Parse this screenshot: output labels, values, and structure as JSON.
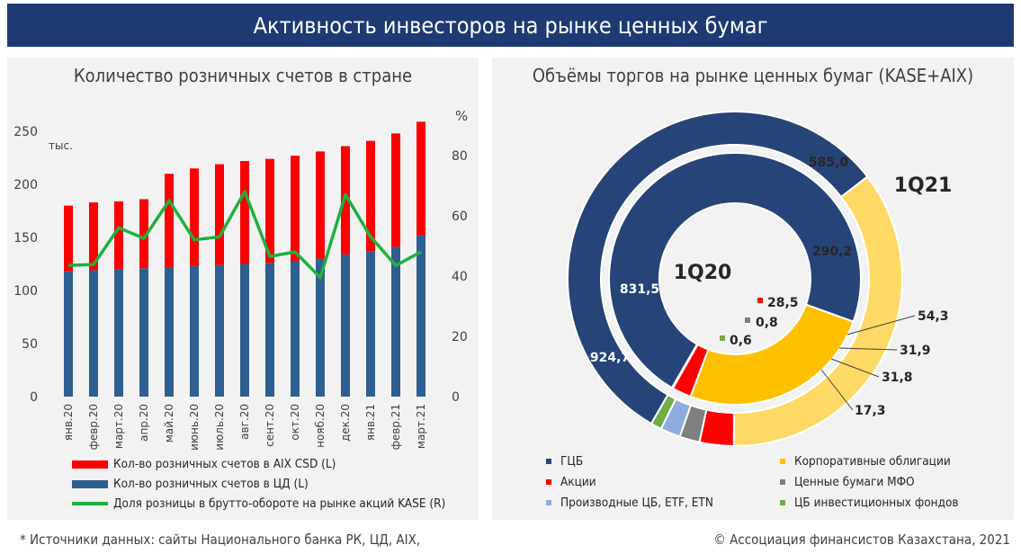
{
  "header": {
    "title": "Активность инвесторов на рынке ценных бумаг"
  },
  "footer": {
    "sources": "* Источники данных: сайты Национального банка РК, ЦД, AIX,",
    "copyright": "© Ассоциация финансистов Казахстана, 2021"
  },
  "colors": {
    "banner": "#1f3a73",
    "aix": "#ff0000",
    "cd": "#2e5f91",
    "share": "#1fb040",
    "gcb": "#264478",
    "corp": "#ffc000",
    "stocks": "#ff0000",
    "mfo": "#7f7f7f",
    "deriv": "#8faadc",
    "funds": "#70ad47"
  },
  "chart_data": [
    {
      "type": "bar",
      "title": "Количество розничных счетов в стране",
      "y_left_unit": "тыс.",
      "y_right_unit": "%",
      "ylim_left": [
        0,
        250
      ],
      "ylim_right": [
        0,
        88
      ],
      "y_left_ticks": [
        0,
        50,
        100,
        150,
        200,
        250
      ],
      "y_right_ticks": [
        0,
        20,
        40,
        60,
        80
      ],
      "categories": [
        "янв.20",
        "февр.20",
        "март.20",
        "апр.20",
        "май.20",
        "июнь.20",
        "июль.20",
        "авг.20",
        "сент.20",
        "окт.20",
        "нояб.20",
        "дек.20",
        "янв.21",
        "февр.21",
        "март.21"
      ],
      "series": [
        {
          "name": "Кол-во розничных счетов в ЦД (L)",
          "kind": "bar",
          "axis": "left",
          "values": [
            118,
            119,
            120,
            121,
            122,
            123,
            124,
            125,
            126,
            128,
            130,
            134,
            137,
            141,
            152
          ]
        },
        {
          "name": "Кол-во розничных счетов в AIX CSD (L)",
          "kind": "bar-stack",
          "axis": "left",
          "values": [
            62,
            64,
            64,
            65,
            88,
            92,
            95,
            97,
            98,
            99,
            101,
            102,
            104,
            107,
            107
          ]
        },
        {
          "name": "Доля розницы в брутто-обороте на рынке акций KASE (R)",
          "kind": "line",
          "axis": "right",
          "values": [
            43.5,
            43.8,
            56,
            52.5,
            65,
            52,
            53,
            68,
            46.5,
            48,
            39.5,
            67,
            53,
            43.5,
            48
          ]
        }
      ]
    },
    {
      "type": "pie",
      "subtype": "double-donut",
      "title": "Объёмы торгов на рынке ценных бумаг (KASE+AIX)",
      "rings": [
        {
          "name": "1Q20",
          "slices": [
            {
              "label": "ЦБ",
              "value": 831.5
            },
            {
              "label": "Корпоративные облигации",
              "value": 290.2
            },
            {
              "label": "Акции",
              "value": 28.5
            },
            {
              "label": "Ценные бумаги МФО",
              "value": 0.8
            },
            {
              "label": "ЦБ инвестиционных фондов",
              "value": 0.6
            }
          ]
        },
        {
          "name": "1Q21",
          "slices": [
            {
              "label": "ЦБ",
              "value": 924.7
            },
            {
              "label": "Корпоративные облигации",
              "value": 585.0
            },
            {
              "label": "Акции",
              "value": 54.3
            },
            {
              "label": "Ценные бумаги МФО",
              "value": 31.9
            },
            {
              "label": "Производные ЦБ, ETF, ETN",
              "value": 31.8
            },
            {
              "label": "ЦБ инвестиционных фондов",
              "value": 17.3
            }
          ]
        }
      ],
      "value_labels": {
        "inner_gcb": "831,5",
        "inner_corp": "290,2",
        "inner_stocks": "28,5",
        "inner_mfo": "0,8",
        "inner_funds": "0,6",
        "outer_gcb": "924,7",
        "outer_corp": "585,0",
        "outer_stocks": "54,3",
        "outer_mfo": "31,9",
        "outer_deriv": "31,8",
        "outer_funds": "17,3"
      },
      "legend": [
        "ГЦБ",
        "Корпоративные облигации",
        "Акции",
        "Ценные бумаги МФО",
        "Производные ЦБ, ETF, ETN",
        "ЦБ инвестиционных фондов"
      ]
    }
  ]
}
